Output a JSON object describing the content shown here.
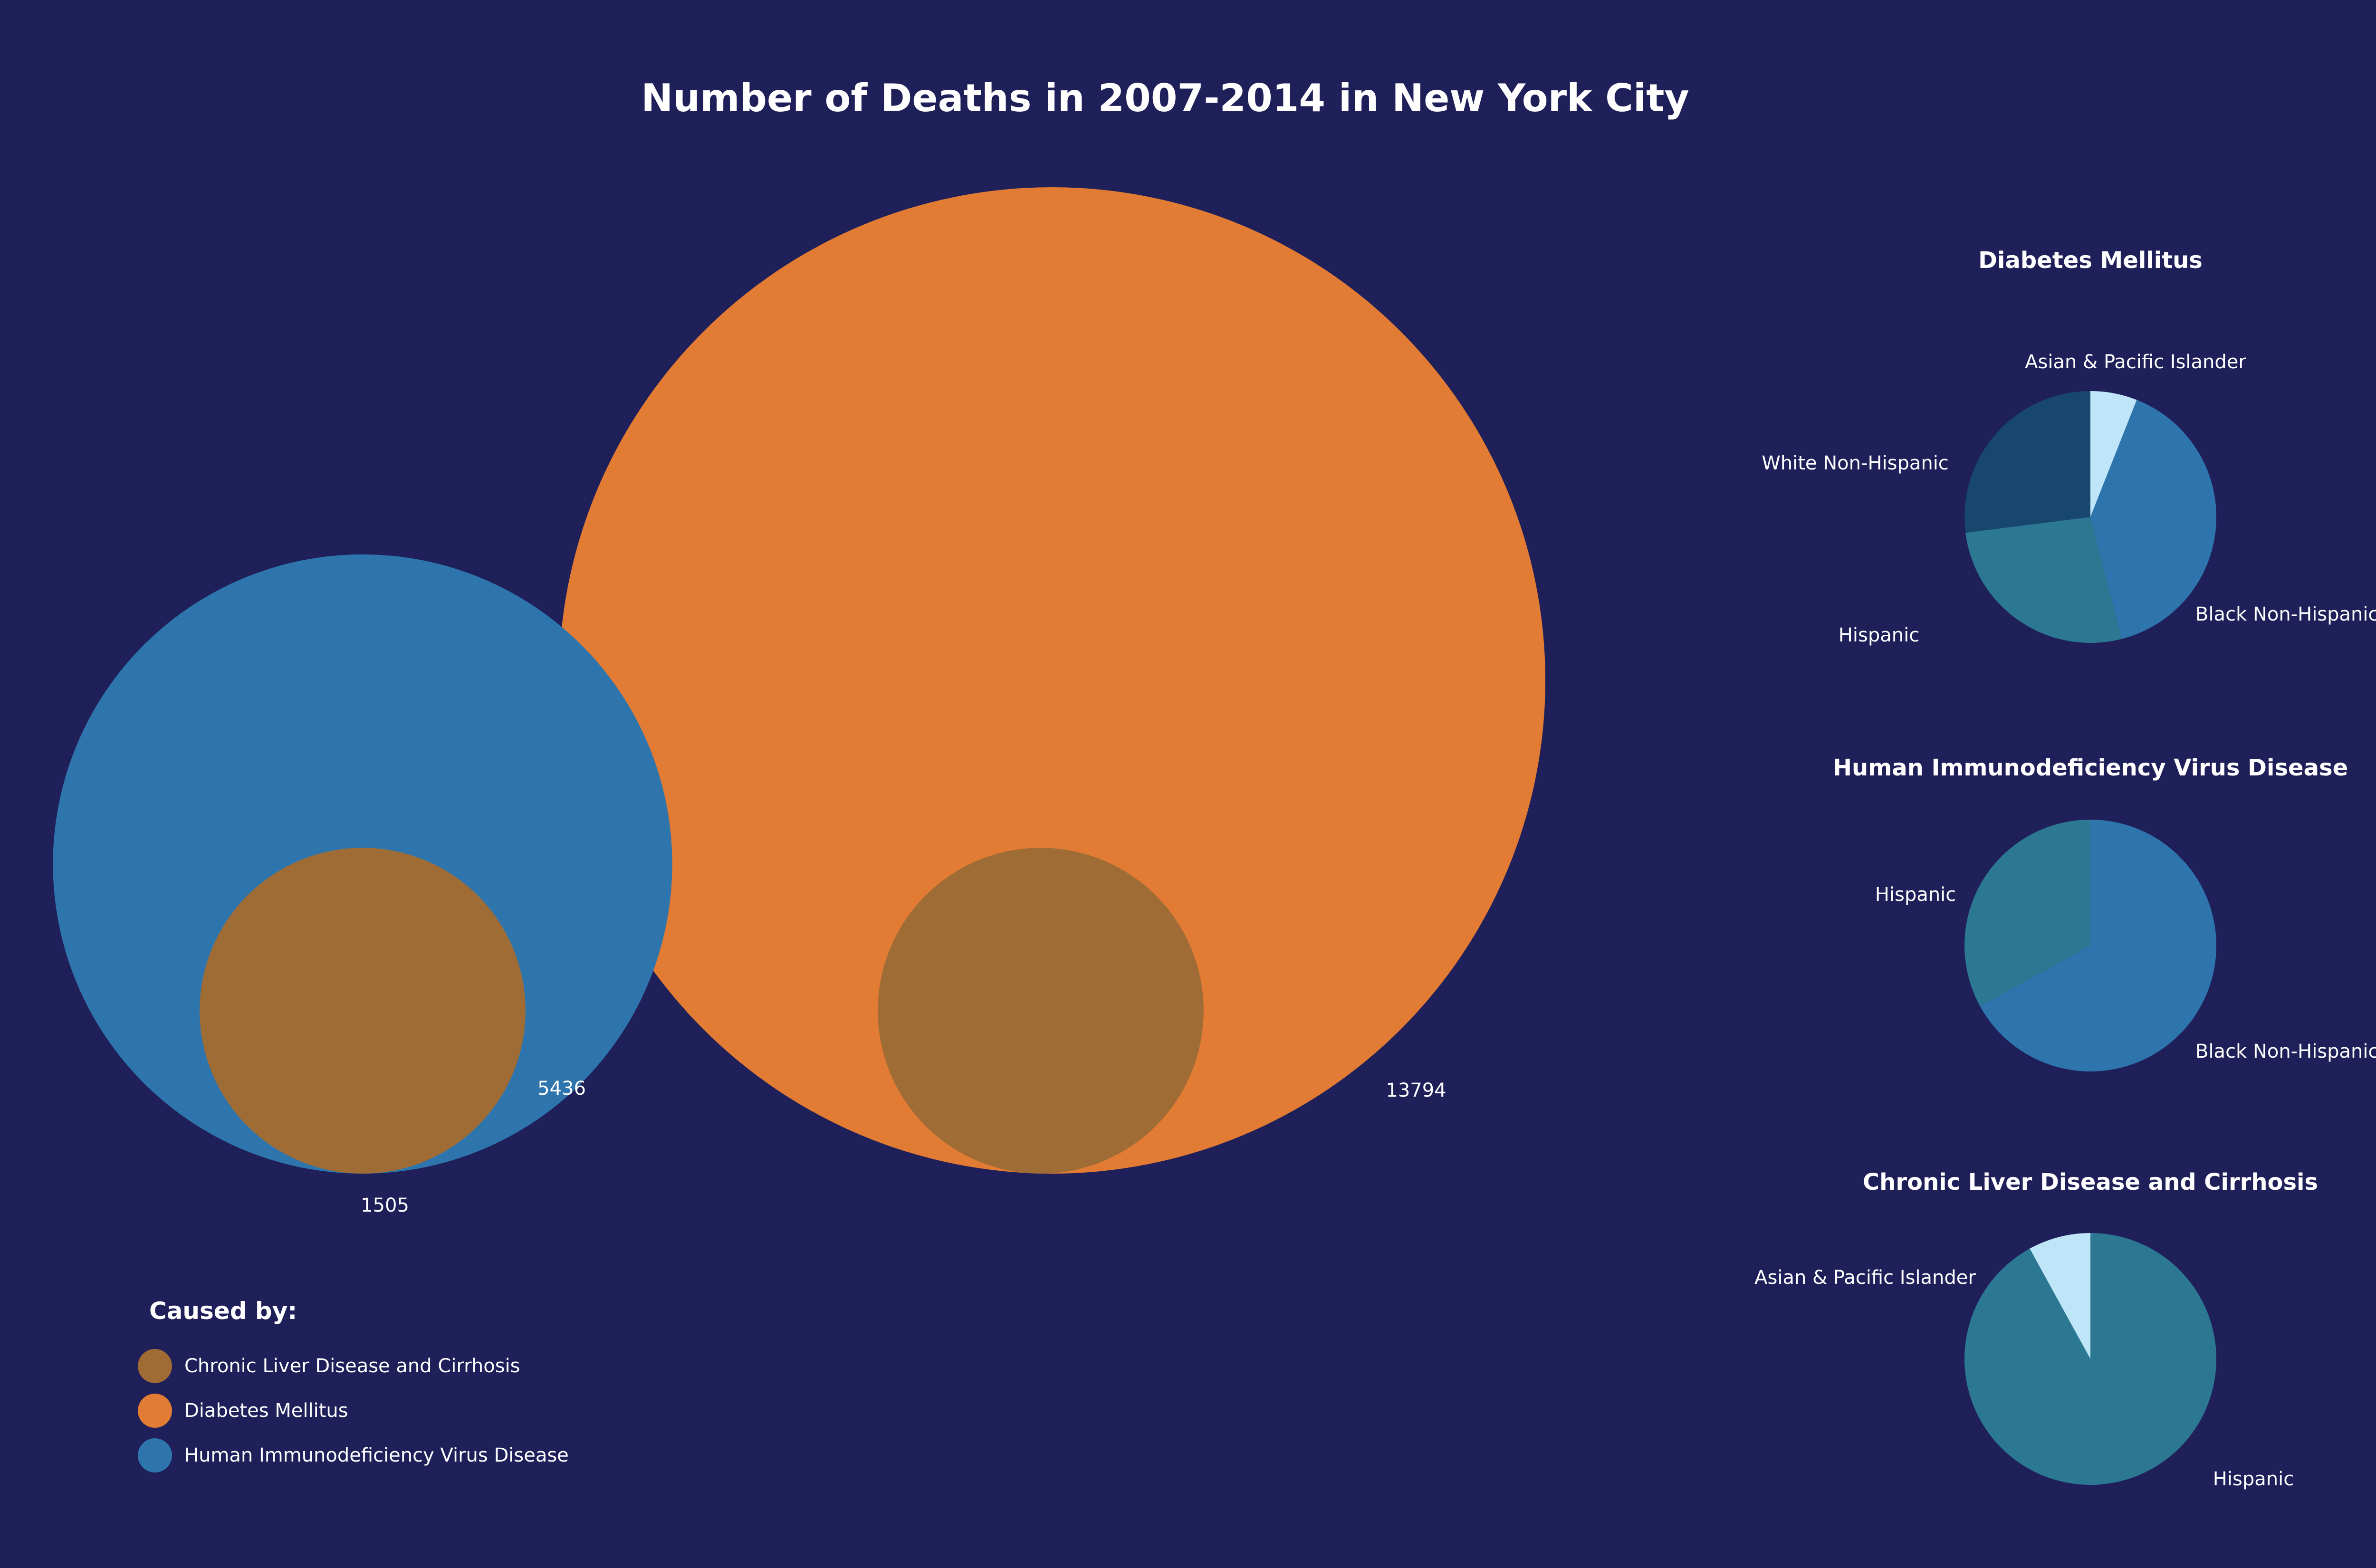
{
  "chart_data": [
    {
      "type": "bubble",
      "title": "Number of Deaths in 2007-2014 in New York City",
      "legend_title": "Caused by:",
      "legend_placement": "bottom-left",
      "series": [
        {
          "name": "Chronic Liver Disease and Cirrhosis",
          "color": "#a06c35"
        },
        {
          "name": "Diabetes Mellitus",
          "color": "#e27c34"
        },
        {
          "name": "Human Immunodeficiency Virus Disease",
          "color": "#2e75ad"
        }
      ],
      "bubbles": [
        {
          "series": "Diabetes Mellitus",
          "value": 13794,
          "label": "13794"
        },
        {
          "series": "Chronic Liver Disease and Cirrhosis",
          "value": 1505,
          "label": ""
        },
        {
          "series": "Human Immunodeficiency Virus Disease",
          "value": 5436,
          "label": "5436"
        },
        {
          "series": "Chronic Liver Disease and Cirrhosis",
          "value": 1505,
          "label": "1505"
        }
      ]
    },
    {
      "type": "pie",
      "title": "Diabetes Mellitus",
      "slices": [
        {
          "label": "Asian & Pacific Islander",
          "value": 6,
          "color": "#bfe6f8"
        },
        {
          "label": "Black Non-Hispanic",
          "value": 40,
          "color": "#2e75ad"
        },
        {
          "label": "Hispanic",
          "value": 27,
          "color": "#2c7893"
        },
        {
          "label": "White Non-Hispanic",
          "value": 27,
          "color": "#17466e"
        }
      ]
    },
    {
      "type": "pie",
      "title": "Human Immunodeficiency Virus Disease",
      "slices": [
        {
          "label": "Black Non-Hispanic",
          "value": 67,
          "color": "#2e75ad"
        },
        {
          "label": "Hispanic",
          "value": 33,
          "color": "#2c7893"
        }
      ]
    },
    {
      "type": "pie",
      "title": "Chronic Liver Disease and Cirrhosis",
      "slices": [
        {
          "label": "Hispanic",
          "value": 92,
          "color": "#2c7893"
        },
        {
          "label": "Asian & Pacific Islander",
          "value": 8,
          "color": "#bfe6f8"
        }
      ]
    }
  ]
}
